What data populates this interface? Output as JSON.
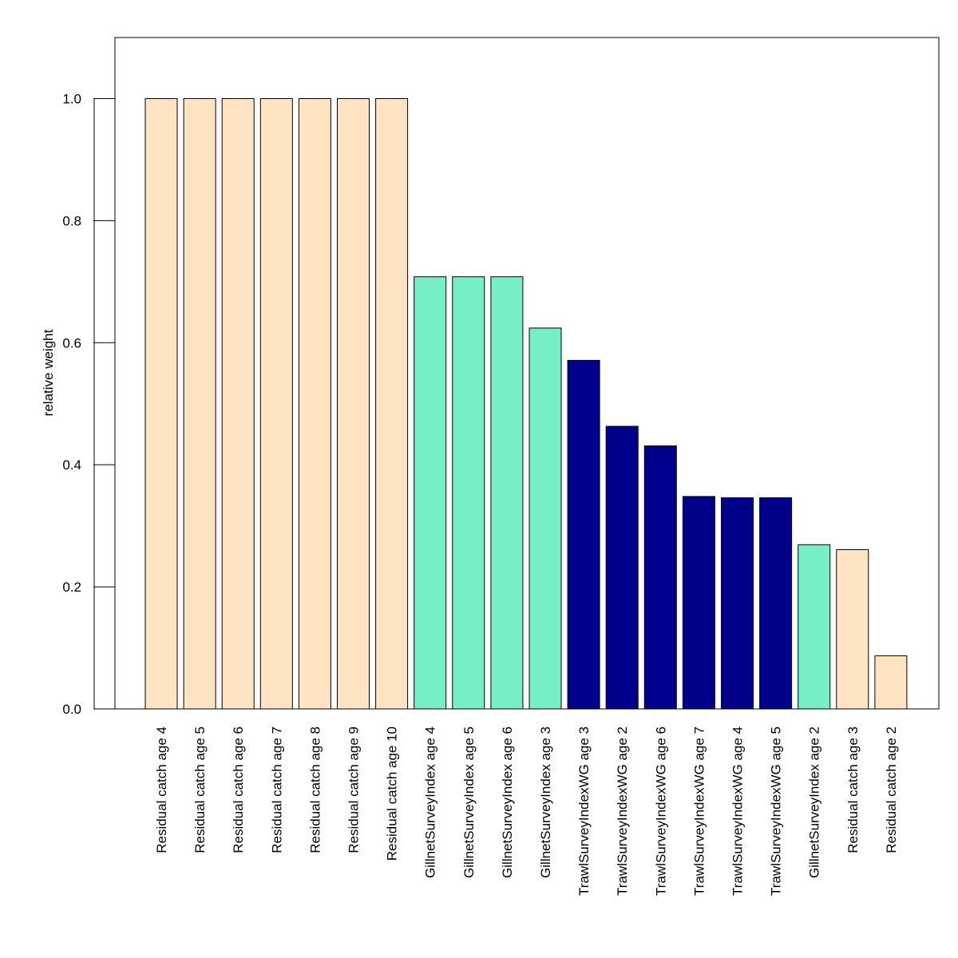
{
  "chart_data": {
    "type": "bar",
    "title": "",
    "xlabel": "",
    "ylabel": "relative weight",
    "ylim": [
      0,
      1.1
    ],
    "yticks": [
      "0.0",
      "0.2",
      "0.4",
      "0.6",
      "0.8",
      "1.0"
    ],
    "grid": false,
    "categories": [
      "Residual catch age 4",
      "Residual catch age 5",
      "Residual catch age 6",
      "Residual catch age 7",
      "Residual catch age 8",
      "Residual catch age 9",
      "Residual catch age 10",
      "GillnetSurveyIndex age 4",
      "GillnetSurveyIndex age 5",
      "GillnetSurveyIndex age 6",
      "GillnetSurveyIndex age 3",
      "TrawlSurveyIndexWG age 3",
      "TrawlSurveyIndexWG age 2",
      "TrawlSurveyIndexWG age 6",
      "TrawlSurveyIndexWG age 7",
      "TrawlSurveyIndexWG age 4",
      "TrawlSurveyIndexWG age 5",
      "GillnetSurveyIndex age 2",
      "Residual catch age 3",
      "Residual catch age 2"
    ],
    "values": [
      1.0,
      1.0,
      1.0,
      1.0,
      1.0,
      1.0,
      1.0,
      0.708,
      0.708,
      0.708,
      0.624,
      0.571,
      0.463,
      0.431,
      0.348,
      0.346,
      0.346,
      0.269,
      0.261,
      0.087
    ],
    "groups": [
      "residual",
      "residual",
      "residual",
      "residual",
      "residual",
      "residual",
      "residual",
      "gillnet",
      "gillnet",
      "gillnet",
      "gillnet",
      "trawl",
      "trawl",
      "trawl",
      "trawl",
      "trawl",
      "trawl",
      "gillnet",
      "residual",
      "residual"
    ],
    "colors": {
      "residual": "#ffe4c4",
      "gillnet": "#76eec6",
      "trawl": "#00008b",
      "bar_border": "#000000",
      "axis": "#000000"
    }
  }
}
